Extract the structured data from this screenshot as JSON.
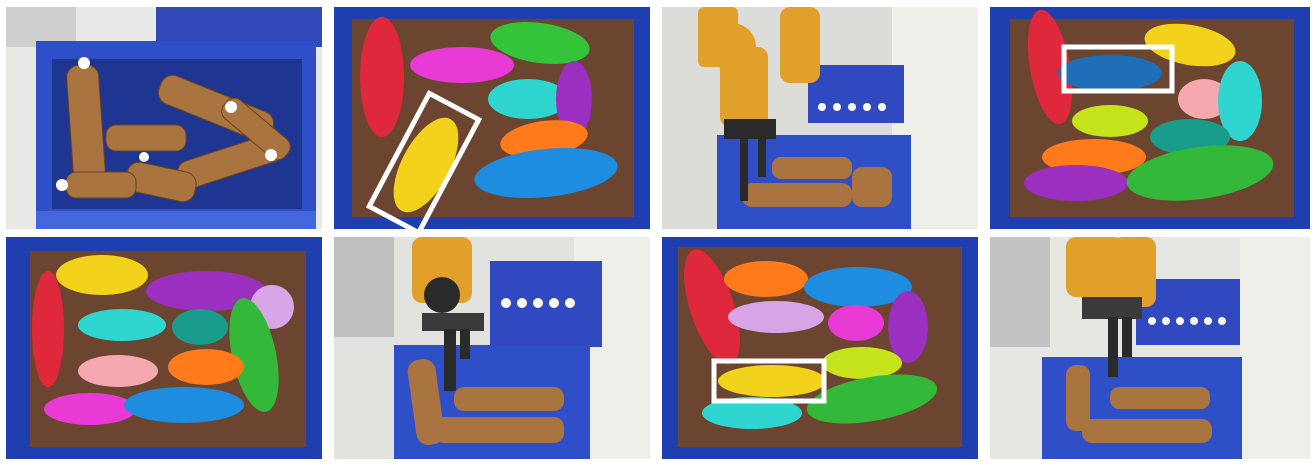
{
  "figure": {
    "panels": [
      {
        "id": "p1",
        "kind": "photo",
        "scene": "bin-of-coffee-bottles"
      },
      {
        "id": "p2",
        "kind": "segmentation",
        "highlight_color": "yellow"
      },
      {
        "id": "p3",
        "kind": "photo",
        "scene": "robot-arm-above-bin"
      },
      {
        "id": "p4",
        "kind": "segmentation",
        "highlight_color": "blue"
      },
      {
        "id": "p5",
        "kind": "segmentation",
        "highlight_color": "none"
      },
      {
        "id": "p6",
        "kind": "photo",
        "scene": "robot-gripper-grasping"
      },
      {
        "id": "p7",
        "kind": "segmentation",
        "highlight_color": "yellow"
      },
      {
        "id": "p8",
        "kind": "photo",
        "scene": "robot-gripper-lifting"
      }
    ],
    "colors": {
      "bin_blue": "#2f4fc8",
      "bin_dark": "#1c2f86",
      "bottle_brown": "#a9743f",
      "robot_orange": "#e0a02a",
      "highlight_box": "#ffffff"
    }
  }
}
